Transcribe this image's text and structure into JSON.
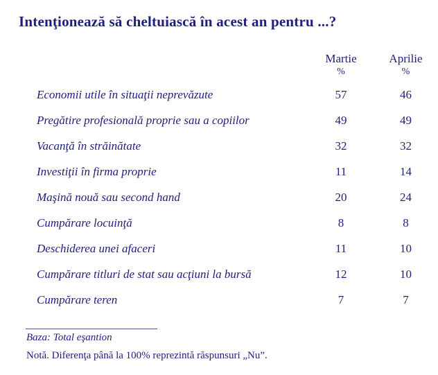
{
  "page": {
    "title": "Intenţionează să cheltuiască în acest an pentru ...?",
    "text_color": "#1e1e7e",
    "background_color": "#ffffff"
  },
  "table": {
    "columns": [
      {
        "label": "Martie",
        "unit": "%"
      },
      {
        "label": "Aprilie",
        "unit": "%"
      }
    ],
    "rows": [
      {
        "label": "Economii utile în situaţii neprevăzute",
        "martie": "57",
        "aprilie": "46"
      },
      {
        "label": "Pregătire profesională proprie sau a copiilor",
        "martie": "49",
        "aprilie": "49"
      },
      {
        "label": "Vacanţă în străinătate",
        "martie": "32",
        "aprilie": "32"
      },
      {
        "label": "Investiţii în firma proprie",
        "martie": "11",
        "aprilie": "14"
      },
      {
        "label": "Maşină nouă sau second hand",
        "martie": "20",
        "aprilie": "24"
      },
      {
        "label": "Cumpărare locuinţă",
        "martie": "8",
        "aprilie": "8"
      },
      {
        "label": "Deschiderea unei afaceri",
        "martie": "11",
        "aprilie": "10"
      },
      {
        "label": "Cumpărare titluri de stat sau acţiuni la bursă",
        "martie": "12",
        "aprilie": "10"
      },
      {
        "label": "Cumpărare teren",
        "martie": "7",
        "aprilie": "7"
      }
    ]
  },
  "footer": {
    "base_note": "Baza: Total eşantion",
    "note": "Notă. Diferenţa până la 100% reprezintă răspunsuri „Nu”."
  },
  "chart_data": {
    "type": "table",
    "title": "Intenţionează să cheltuiască în acest an pentru ...?",
    "categories": [
      "Economii utile în situaţii neprevăzute",
      "Pregătire profesională proprie sau a copiilor",
      "Vacanţă în străinătate",
      "Investiţii în firma proprie",
      "Maşină nouă sau second hand",
      "Cumpărare locuinţă",
      "Deschiderea unei afaceri",
      "Cumpărare titluri de stat sau acţiuni la bursă",
      "Cumpărare teren"
    ],
    "series": [
      {
        "name": "Martie %",
        "values": [
          57,
          49,
          32,
          11,
          20,
          8,
          11,
          12,
          7
        ]
      },
      {
        "name": "Aprilie %",
        "values": [
          46,
          49,
          32,
          14,
          24,
          8,
          10,
          10,
          7
        ]
      }
    ],
    "footnotes": [
      "Baza: Total eşantion",
      "Notă. Diferenţa până la 100% reprezintă răspunsuri „Nu”."
    ]
  }
}
